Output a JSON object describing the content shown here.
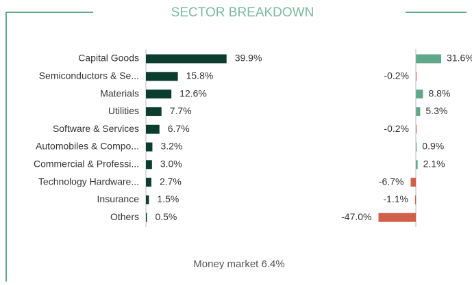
{
  "title": "SECTOR BREAKDOWN",
  "chart_data": [
    {
      "type": "bar",
      "orientation": "horizontal",
      "categories": [
        "Capital Goods",
        "Semiconductors & Se...",
        "Materials",
        "Utilities",
        "Software & Services",
        "Automobiles & Compo...",
        "Commercial & Professi...",
        "Technology Hardware...",
        "Insurance",
        "Others"
      ],
      "values": [
        39.9,
        15.8,
        12.6,
        7.7,
        6.7,
        3.2,
        3.0,
        2.7,
        1.5,
        0.5
      ],
      "value_labels": [
        "39.9%",
        "15.8%",
        "12.6%",
        "7.7%",
        "6.7%",
        "3.2%",
        "3.0%",
        "2.7%",
        "1.5%",
        "0.5%"
      ],
      "color": "#0b3d2e",
      "xlim": [
        0,
        40
      ]
    },
    {
      "type": "bar",
      "orientation": "horizontal",
      "values": [
        31.6,
        -0.2,
        8.8,
        5.3,
        -0.2,
        0.9,
        2.1,
        -6.7,
        -1.1,
        -47.0
      ],
      "value_labels": [
        "31.6%",
        "-0.2%",
        "8.8%",
        "5.3%",
        "-0.2%",
        "0.9%",
        "2.1%",
        "-6.7%",
        "-1.1%",
        "-47.0%"
      ],
      "color": "#5fa98a",
      "negative_color": "#d0604a",
      "xlim": [
        -50,
        35
      ]
    }
  ],
  "footer": "Money market 6.4%"
}
